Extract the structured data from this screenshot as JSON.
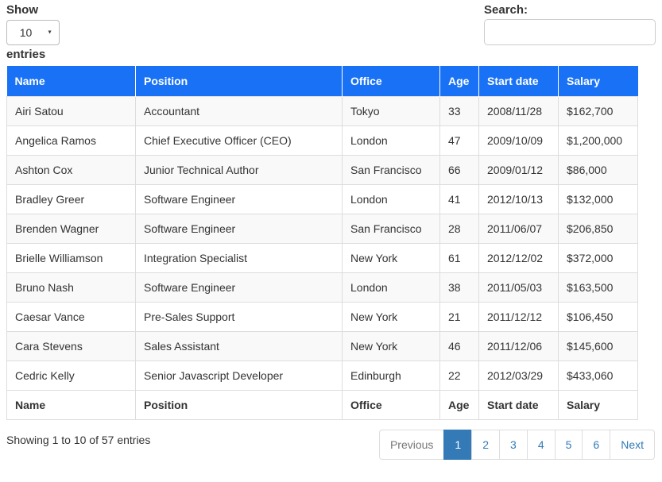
{
  "length_control": {
    "label_before": "Show",
    "selected": "10",
    "label_after": "entries"
  },
  "search": {
    "label": "Search:",
    "value": "",
    "placeholder": ""
  },
  "table": {
    "columns": [
      "Name",
      "Position",
      "Office",
      "Age",
      "Start date",
      "Salary"
    ],
    "rows": [
      [
        "Airi Satou",
        "Accountant",
        "Tokyo",
        "33",
        "2008/11/28",
        "$162,700"
      ],
      [
        "Angelica Ramos",
        "Chief Executive Officer (CEO)",
        "London",
        "47",
        "2009/10/09",
        "$1,200,000"
      ],
      [
        "Ashton Cox",
        "Junior Technical Author",
        "San Francisco",
        "66",
        "2009/01/12",
        "$86,000"
      ],
      [
        "Bradley Greer",
        "Software Engineer",
        "London",
        "41",
        "2012/10/13",
        "$132,000"
      ],
      [
        "Brenden Wagner",
        "Software Engineer",
        "San Francisco",
        "28",
        "2011/06/07",
        "$206,850"
      ],
      [
        "Brielle Williamson",
        "Integration Specialist",
        "New York",
        "61",
        "2012/12/02",
        "$372,000"
      ],
      [
        "Bruno Nash",
        "Software Engineer",
        "London",
        "38",
        "2011/05/03",
        "$163,500"
      ],
      [
        "Caesar Vance",
        "Pre-Sales Support",
        "New York",
        "21",
        "2011/12/12",
        "$106,450"
      ],
      [
        "Cara Stevens",
        "Sales Assistant",
        "New York",
        "46",
        "2011/12/06",
        "$145,600"
      ],
      [
        "Cedric Kelly",
        "Senior Javascript Developer",
        "Edinburgh",
        "22",
        "2012/03/29",
        "$433,060"
      ]
    ],
    "footer": [
      "Name",
      "Position",
      "Office",
      "Age",
      "Start date",
      "Salary"
    ]
  },
  "info": {
    "text": "Showing 1 to 10 of 57 entries"
  },
  "pagination": {
    "previous_label": "Previous",
    "pages": [
      "1",
      "2",
      "3",
      "4",
      "5",
      "6"
    ],
    "active_page": "1",
    "next_label": "Next"
  },
  "colors": {
    "header_bg": "#1972f5",
    "header_text": "#ffffff",
    "active_page_bg": "#337ab7",
    "link": "#337ab7",
    "disabled_link": "#777777",
    "stripe_row": "#f9f9f9",
    "border": "#dddddd",
    "body_text": "#333333"
  }
}
